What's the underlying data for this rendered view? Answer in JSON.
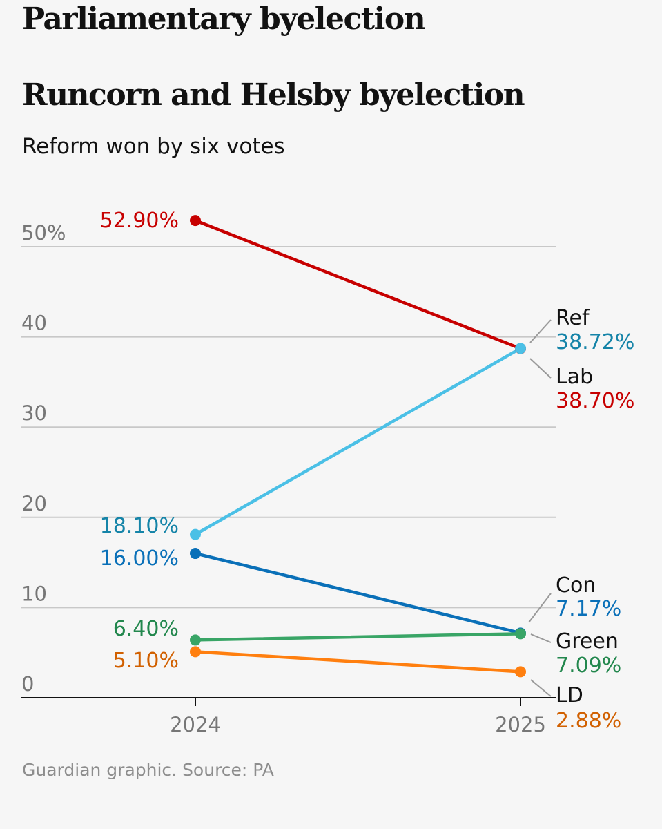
{
  "header": {
    "title": "Parliamentary byelection"
  },
  "chart_data": {
    "type": "line",
    "title": "Runcorn and Helsby byelection",
    "subtitle": "Reform won by six votes",
    "x": [
      "2024",
      "2025"
    ],
    "ylim": [
      0,
      55
    ],
    "yticks": [
      0,
      10,
      20,
      30,
      40,
      50
    ],
    "ytick_labels": [
      "0",
      "10",
      "20",
      "30",
      "40",
      "50%"
    ],
    "series": [
      {
        "key": "lab",
        "name": "Lab",
        "values": [
          52.9,
          38.7
        ],
        "labels": [
          "52.90%",
          "38.70%"
        ],
        "color": "#c70000",
        "text_color": "#c70000"
      },
      {
        "key": "ref",
        "name": "Ref",
        "values": [
          18.1,
          38.72
        ],
        "labels": [
          "18.10%",
          "38.72%"
        ],
        "color": "#4bc0e6",
        "text_color": "#1584a8"
      },
      {
        "key": "con",
        "name": "Con",
        "values": [
          16.0,
          7.17
        ],
        "labels": [
          "16.00%",
          "7.17%"
        ],
        "color": "#0a70b8",
        "text_color": "#0a70b8"
      },
      {
        "key": "green",
        "name": "Green",
        "values": [
          6.4,
          7.09
        ],
        "labels": [
          "6.40%",
          "7.09%"
        ],
        "color": "#39a566",
        "text_color": "#22874d"
      },
      {
        "key": "ld",
        "name": "LD",
        "values": [
          5.1,
          2.88
        ],
        "labels": [
          "5.10%",
          "2.88%"
        ],
        "color": "#ff7f0f",
        "text_color": "#d16000"
      }
    ]
  },
  "source": "Guardian graphic. Source: PA"
}
